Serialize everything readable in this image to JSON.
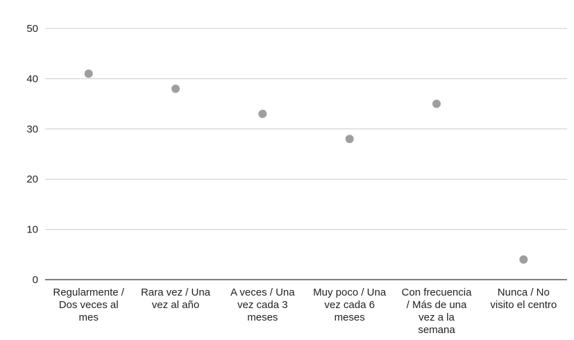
{
  "chart_data": {
    "type": "scatter",
    "title": "",
    "xlabel": "",
    "ylabel": "",
    "ylim": [
      0,
      50
    ],
    "yticks": [
      0,
      10,
      20,
      30,
      40,
      50
    ],
    "grid": true,
    "legend": "none",
    "point_color": "#9e9e9e",
    "categories": [
      [
        "Regularmente /",
        "Dos veces al",
        "mes"
      ],
      [
        "Rara vez / Una",
        "vez al año"
      ],
      [
        "A veces / Una",
        "vez cada 3",
        "meses"
      ],
      [
        "Muy poco / Una",
        "vez cada 6",
        "meses"
      ],
      [
        "Con frecuencia",
        "/ Más de una",
        "vez a la",
        "semana"
      ],
      [
        "Nunca / No",
        "visito el centro"
      ]
    ],
    "values": [
      41,
      38,
      33,
      28,
      35,
      4
    ]
  }
}
